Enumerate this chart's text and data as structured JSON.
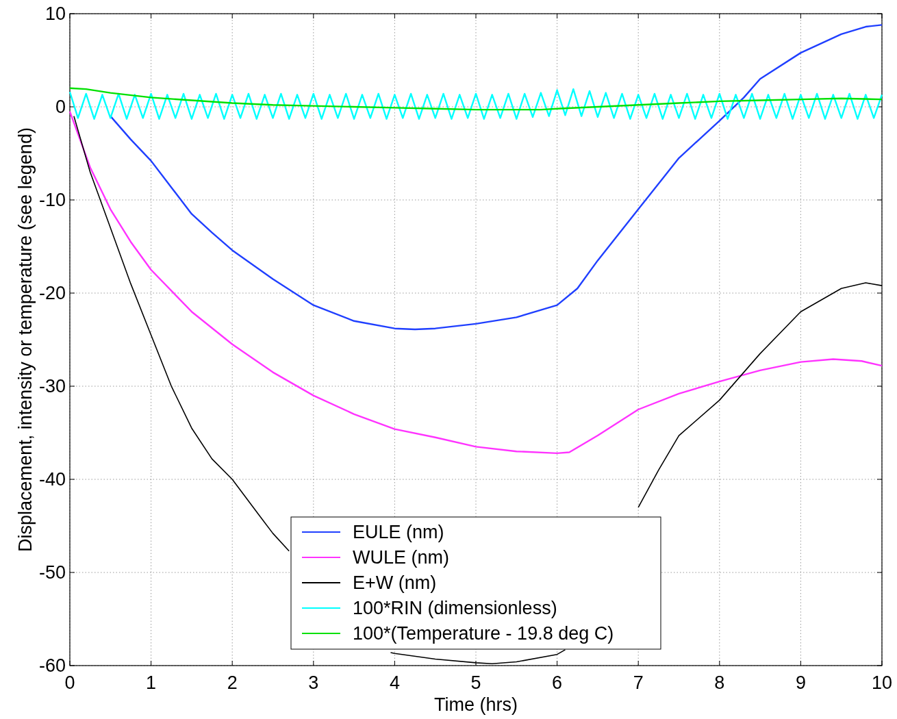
{
  "chart_data": {
    "type": "line",
    "xlabel": "Time (hrs)",
    "ylabel": "Displacement, intensity or temperature (see legend)",
    "xlim": [
      0,
      10
    ],
    "ylim": [
      -60,
      10
    ],
    "xticks": [
      0,
      1,
      2,
      3,
      4,
      5,
      6,
      7,
      8,
      9,
      10
    ],
    "yticks": [
      -60,
      -50,
      -40,
      -30,
      -20,
      -10,
      0,
      10
    ],
    "grid": true,
    "legend": "bottom",
    "marker": "none",
    "line_style": "solid",
    "series": [
      {
        "name": "EULE (nm)",
        "color": "#1f3fff",
        "x": [
          0.5,
          0.75,
          1,
          1.5,
          1.75,
          2,
          2.5,
          3,
          3.5,
          4,
          4.25,
          4.5,
          5,
          5.5,
          6,
          6.25,
          6.5,
          7,
          7.5,
          8,
          8.3,
          8.5,
          9,
          9.5,
          9.8,
          10
        ],
        "values": [
          -1,
          -3.5,
          -5.8,
          -11.5,
          -13.5,
          -15.4,
          -18.5,
          -21.3,
          -23,
          -23.8,
          -23.9,
          -23.8,
          -23.3,
          -22.6,
          -21.3,
          -19.5,
          -16.5,
          -11,
          -5.5,
          -1.5,
          1,
          3,
          5.8,
          7.8,
          8.6,
          8.8
        ]
      },
      {
        "name": "WULE (nm)",
        "color": "#ff33ff",
        "x": [
          0,
          0.25,
          0.5,
          0.75,
          1,
          1.5,
          2,
          2.5,
          3,
          3.5,
          4,
          4.5,
          5,
          5.5,
          6,
          6.15,
          6.5,
          7,
          7.5,
          8,
          8.5,
          9,
          9.4,
          9.75,
          10
        ],
        "values": [
          -0.5,
          -6.5,
          -11,
          -14.5,
          -17.5,
          -22,
          -25.5,
          -28.5,
          -31,
          -33,
          -34.6,
          -35.5,
          -36.5,
          -37,
          -37.2,
          -37.1,
          -35.3,
          -32.5,
          -30.8,
          -29.5,
          -28.3,
          -27.4,
          -27.1,
          -27.3,
          -27.8
        ]
      },
      {
        "name": "E+W (nm)",
        "color": "#000000",
        "x": [
          0.05,
          0.25,
          0.5,
          0.75,
          1,
          1.25,
          1.5,
          1.75,
          2,
          2.3,
          2.5,
          2.7,
          3.3,
          3.95,
          4,
          4.5,
          5,
          5.2,
          5.5,
          6,
          6.1,
          6.5,
          7,
          7.25,
          7.5,
          8,
          8.25,
          8.5,
          9,
          9.5,
          9.8,
          10
        ],
        "values": [
          -1,
          -7,
          -13,
          -19,
          -24.5,
          -30,
          -34.5,
          -37.8,
          -40,
          -43.5,
          -45.8,
          -47.7,
          null,
          -58.6,
          -58.7,
          -59.3,
          -59.7,
          -59.8,
          -59.6,
          -58.8,
          -58.3,
          null,
          -43,
          -39,
          -35.3,
          -31.5,
          -29,
          -26.5,
          -22,
          -19.5,
          -18.9,
          -19.2
        ]
      },
      {
        "name": "100*RIN (dimensionless)",
        "color": "#00ffff",
        "x": [
          0,
          0.1,
          0.2,
          0.3,
          0.4,
          0.5,
          0.6,
          0.7,
          0.8,
          0.9,
          1,
          1.1,
          1.2,
          1.3,
          1.4,
          1.5,
          1.6,
          1.7,
          1.8,
          1.9,
          2,
          2.1,
          2.2,
          2.3,
          2.4,
          2.5,
          2.6,
          2.7,
          2.8,
          2.9,
          3,
          3.1,
          3.2,
          3.3,
          3.4,
          3.5,
          3.6,
          3.7,
          3.8,
          3.9,
          4,
          4.1,
          4.2,
          4.3,
          4.4,
          4.5,
          4.6,
          4.7,
          4.8,
          4.9,
          5,
          5.1,
          5.2,
          5.3,
          5.4,
          5.5,
          5.6,
          5.7,
          5.8,
          5.9,
          6,
          6.1,
          6.2,
          6.3,
          6.4,
          6.5,
          6.6,
          6.7,
          6.8,
          6.9,
          7,
          7.1,
          7.2,
          7.3,
          7.4,
          7.5,
          7.6,
          7.7,
          7.8,
          7.9,
          8,
          8.1,
          8.2,
          8.3,
          8.4,
          8.5,
          8.6,
          8.7,
          8.8,
          8.9,
          9,
          9.1,
          9.2,
          9.3,
          9.4,
          9.5,
          9.6,
          9.7,
          9.8,
          9.9,
          10
        ],
        "values": [
          1.6,
          -1.2,
          1.4,
          -1.3,
          1.3,
          -1.2,
          1.4,
          -1.3,
          1.3,
          -1.2,
          1.4,
          -1.3,
          1.3,
          -1.2,
          1.4,
          -1.3,
          1.3,
          -1.2,
          1.4,
          -1.3,
          1.3,
          -1.2,
          1.4,
          -1.3,
          1.3,
          -1.2,
          1.4,
          -1.3,
          1.3,
          -1.2,
          1.4,
          -1.3,
          1.3,
          -1.2,
          1.4,
          -1.3,
          1.3,
          -1.2,
          1.4,
          -1.3,
          1.3,
          -1.2,
          1.4,
          -1.3,
          1.3,
          -1.2,
          1.4,
          -1.3,
          1.3,
          -1.2,
          1.4,
          -1.3,
          1.3,
          -1.2,
          1.4,
          -1.3,
          1.4,
          -1.1,
          1.5,
          -1.0,
          1.8,
          -0.9,
          1.9,
          -1.0,
          1.7,
          -1.1,
          1.5,
          -1.2,
          1.4,
          -1.3,
          1.3,
          -1.2,
          1.4,
          -1.3,
          1.3,
          -1.2,
          1.4,
          -1.3,
          1.3,
          -1.2,
          1.4,
          -1.3,
          1.3,
          -1.2,
          1.4,
          -1.3,
          1.3,
          -1.2,
          1.4,
          -1.3,
          1.3,
          -1.2,
          1.4,
          -1.3,
          1.3,
          -1.2,
          1.4,
          -1.3,
          1.3,
          -1.2,
          1.3
        ]
      },
      {
        "name": "100*(Temperature - 19.8 deg C)",
        "color": "#00e000",
        "x": [
          0,
          0.2,
          0.5,
          1,
          1.5,
          2,
          2.5,
          3,
          3.5,
          4,
          4.5,
          5,
          5.5,
          5.8,
          6,
          6.5,
          7,
          7.5,
          8,
          8.5,
          9,
          9.5,
          10
        ],
        "values": [
          2,
          1.9,
          1.5,
          1,
          0.7,
          0.4,
          0.2,
          0.1,
          0,
          -0.1,
          -0.2,
          -0.3,
          -0.3,
          -0.3,
          -0.2,
          0,
          0.2,
          0.4,
          0.6,
          0.7,
          0.8,
          0.9,
          0.8
        ]
      }
    ]
  }
}
